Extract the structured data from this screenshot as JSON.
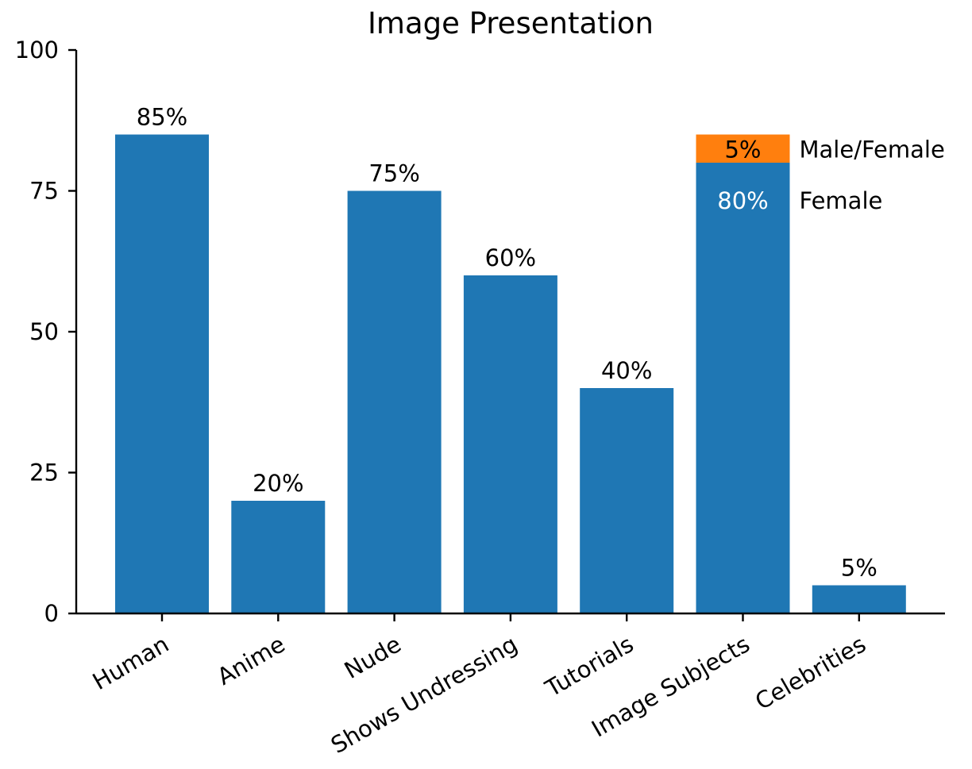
{
  "chart_data": {
    "type": "bar",
    "title": "Image Presentation",
    "xlabel": "",
    "ylabel": "",
    "ylim": [
      0,
      100
    ],
    "yticks": [
      "0",
      "25",
      "50",
      "75",
      "100"
    ],
    "grid": false,
    "categories": [
      "Human",
      "Anime",
      "Nude",
      "Shows Undressing",
      "Tutorials",
      "Image Subjects",
      "Celebrities"
    ],
    "series": [
      {
        "values": [
          85,
          20,
          75,
          60,
          40,
          80,
          5
        ],
        "labels": [
          "85%",
          "20%",
          "75%",
          "60%",
          "40%",
          "80%",
          "5%"
        ],
        "color": "#1f77b4"
      },
      {
        "values": [
          0,
          0,
          0,
          0,
          0,
          5,
          0
        ],
        "labels": [
          "",
          "",
          "",
          "",
          "",
          "5%",
          ""
        ],
        "color": "#ff7f0e"
      }
    ],
    "annotations": [
      {
        "category": "Image Subjects",
        "text": "Male/Female"
      },
      {
        "category": "Image Subjects",
        "text": "Female"
      }
    ]
  }
}
